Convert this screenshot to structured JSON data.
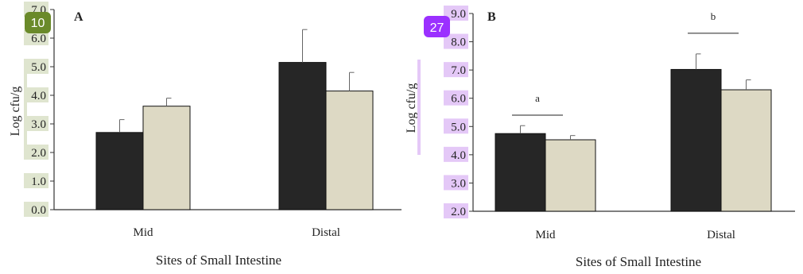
{
  "badges": [
    {
      "text": "10",
      "color": "#6a8a2a"
    },
    {
      "text": "27",
      "color": "#9b30ff"
    }
  ],
  "colors": {
    "series_dark": "#262626",
    "series_light": "#ddd9c4",
    "highlight_green": "#dfe5cf",
    "highlight_purple": "#e4c8f7",
    "axis": "#333333"
  },
  "chart_data": [
    {
      "type": "bar",
      "panel": "A",
      "categories": [
        "Mid",
        "Distal"
      ],
      "series": [
        {
          "values": [
            2.7,
            5.15
          ],
          "errors": [
            0.45,
            1.15
          ]
        },
        {
          "values": [
            3.62,
            4.15
          ],
          "errors": [
            0.28,
            0.65
          ]
        }
      ],
      "xlabel": "Sites of Small Intestine",
      "ylabel": "Log cfu/g",
      "ylim": [
        0.0,
        7.0
      ],
      "yticks": [
        "0.0",
        "1.0",
        "2.0",
        "3.0",
        "4.0",
        "5.0",
        "6.0",
        "7.0"
      ],
      "annotations": []
    },
    {
      "type": "bar",
      "panel": "B",
      "categories": [
        "Mid",
        "Distal"
      ],
      "series": [
        {
          "values": [
            4.75,
            7.02
          ],
          "errors": [
            0.28,
            0.55
          ]
        },
        {
          "values": [
            4.53,
            6.3
          ],
          "errors": [
            0.15,
            0.35
          ]
        }
      ],
      "xlabel": "Sites of Small Intestine",
      "ylabel": "Log cfu/g",
      "ylim": [
        2.0,
        9.0
      ],
      "yticks": [
        "2.0",
        "3.0",
        "4.0",
        "5.0",
        "6.0",
        "7.0",
        "8.0",
        "9.0"
      ],
      "annotations": [
        {
          "text": "a",
          "category": 0,
          "y": 5.4
        },
        {
          "text": "b",
          "category": 1,
          "y": 8.3
        }
      ]
    }
  ]
}
